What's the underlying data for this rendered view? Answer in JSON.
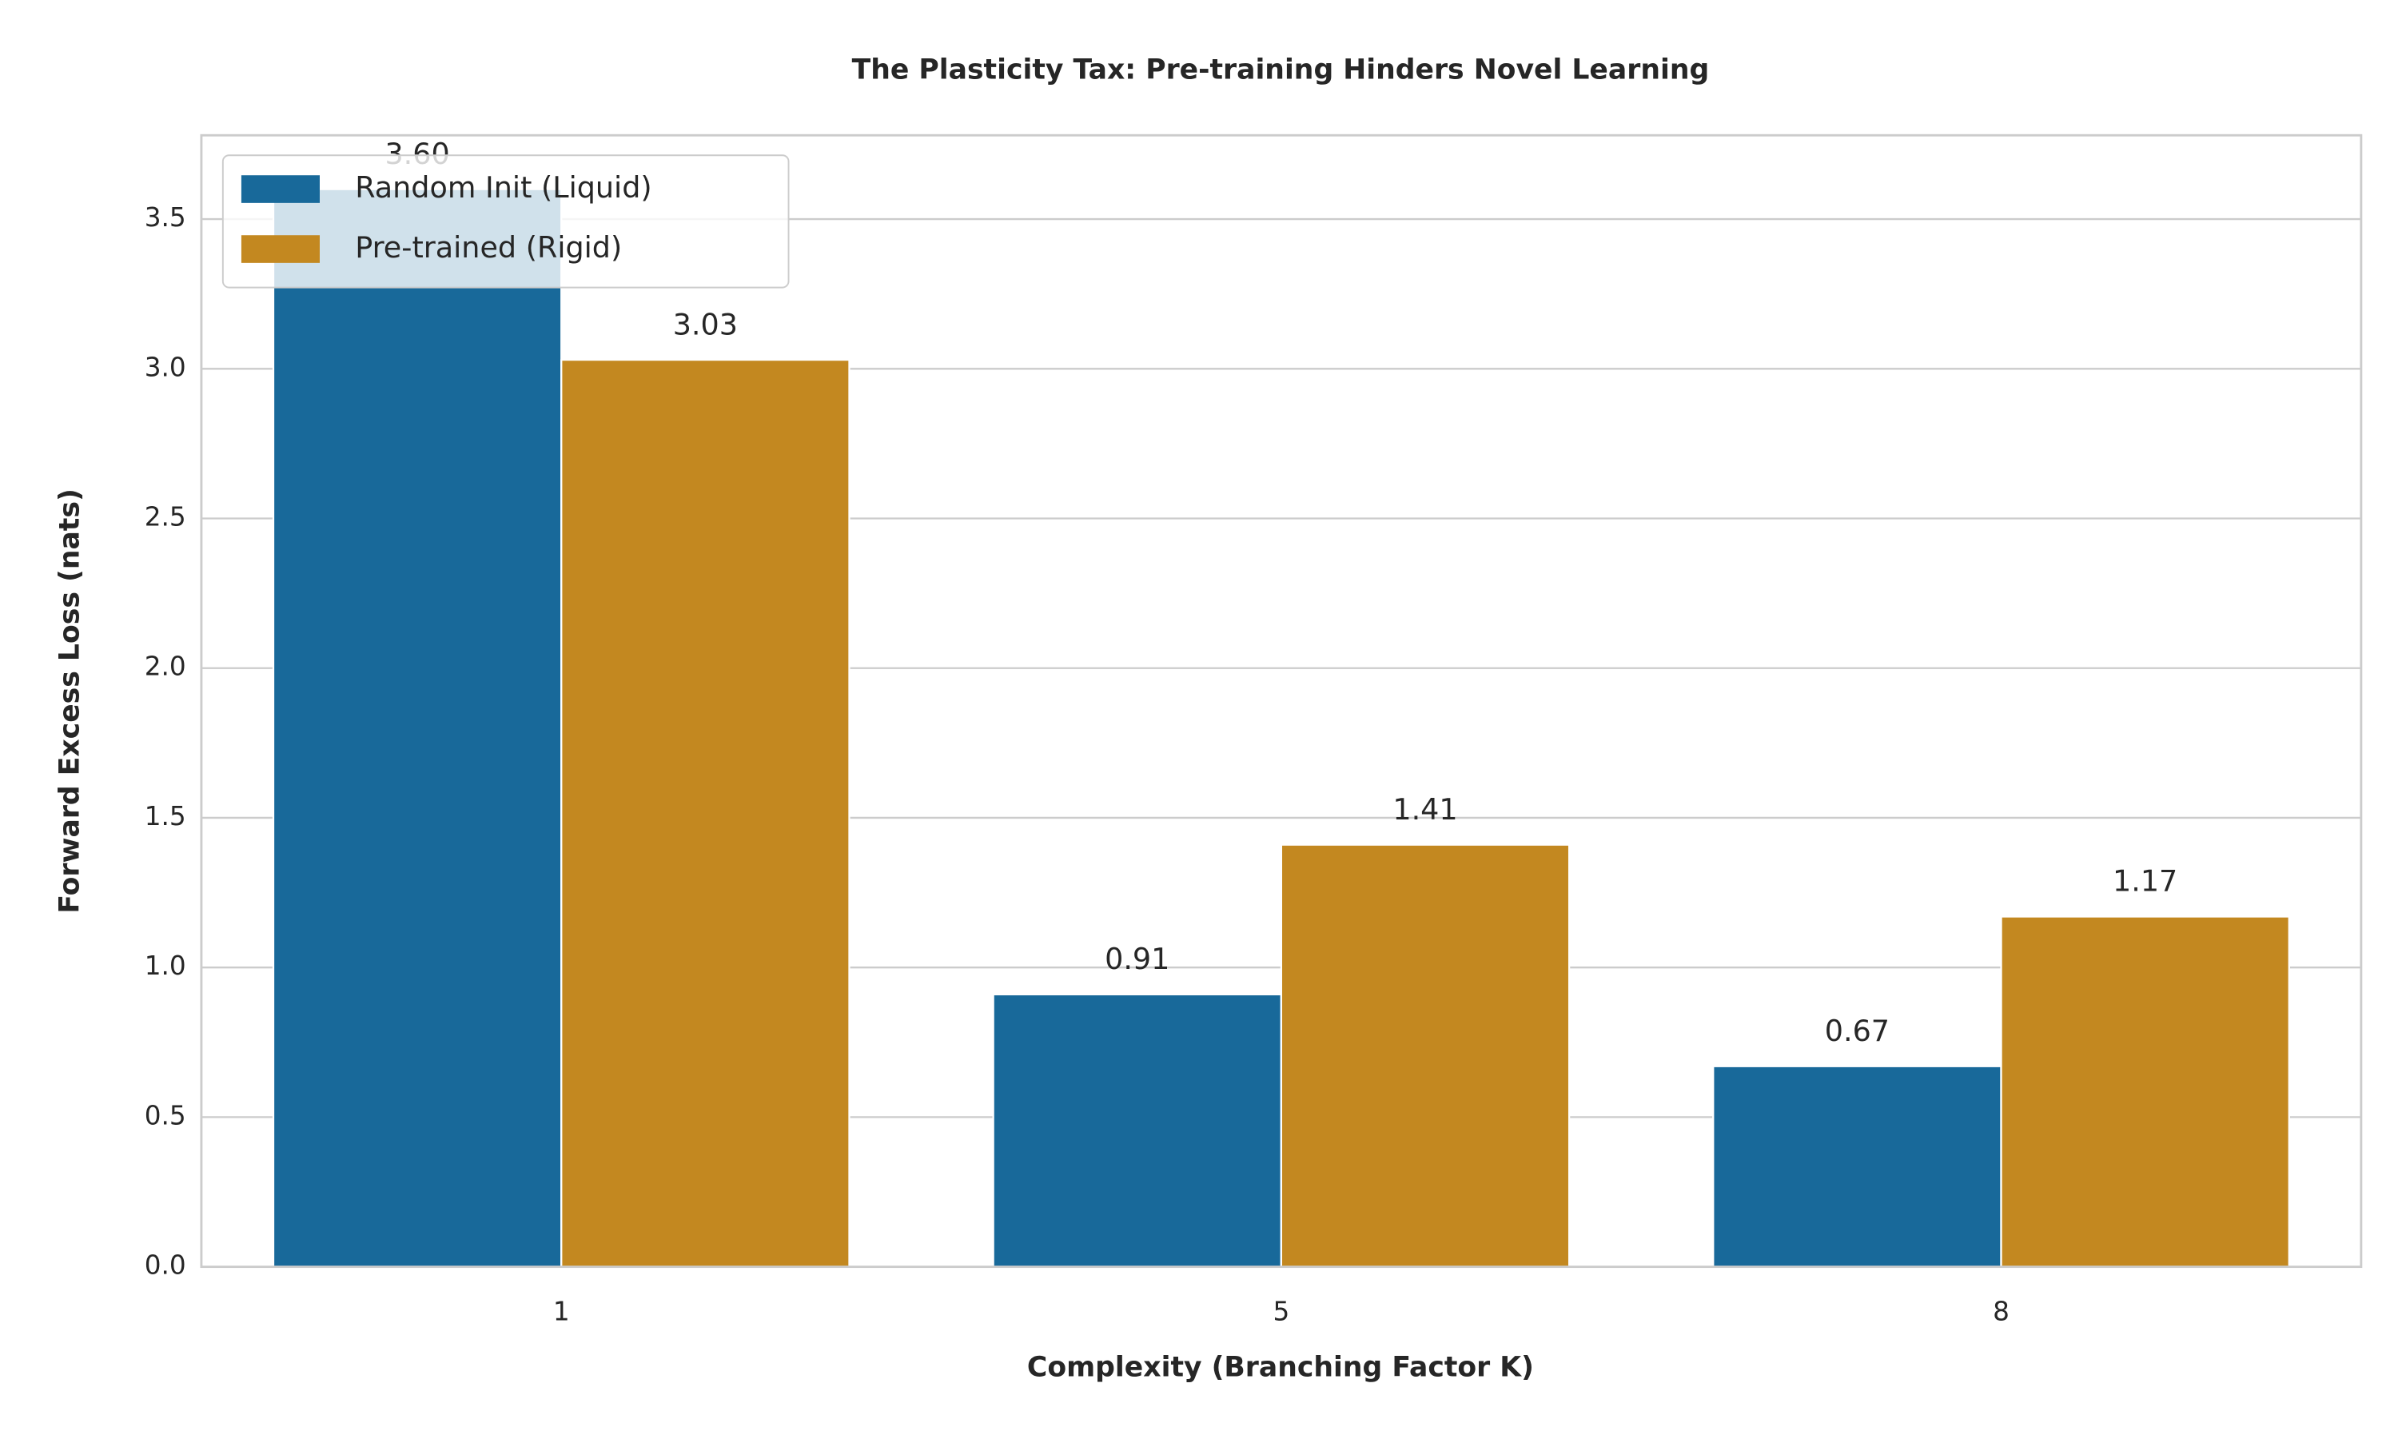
{
  "chart_data": {
    "type": "bar",
    "title": "The Plasticity Tax: Pre-training Hinders Novel Learning",
    "x_label": "Complexity (Branching Factor K)",
    "y_label": "Forward Excess Loss (nats)",
    "categories": [
      "1",
      "5",
      "8"
    ],
    "series": [
      {
        "name": "Random Init (Liquid)",
        "color": "#18699a",
        "values": [
          3.6,
          0.91,
          0.67
        ],
        "value_labels": [
          "3.60",
          "0.91",
          "0.67"
        ]
      },
      {
        "name": "Pre-trained (Rigid)",
        "color": "#c38820",
        "values": [
          3.03,
          1.41,
          1.17
        ]
      }
    ],
    "ylim": [
      0,
      3.78
    ],
    "yticks": [
      {
        "value": 0,
        "label": "0.0"
      },
      0.5,
      {
        "value": 1,
        "label": "1.0"
      },
      1.5,
      {
        "value": 2,
        "label": "2.0"
      },
      2.5,
      {
        "value": 3,
        "label": "3.0"
      },
      3.5
    ],
    "grid": true,
    "legend": "upper-left"
  }
}
